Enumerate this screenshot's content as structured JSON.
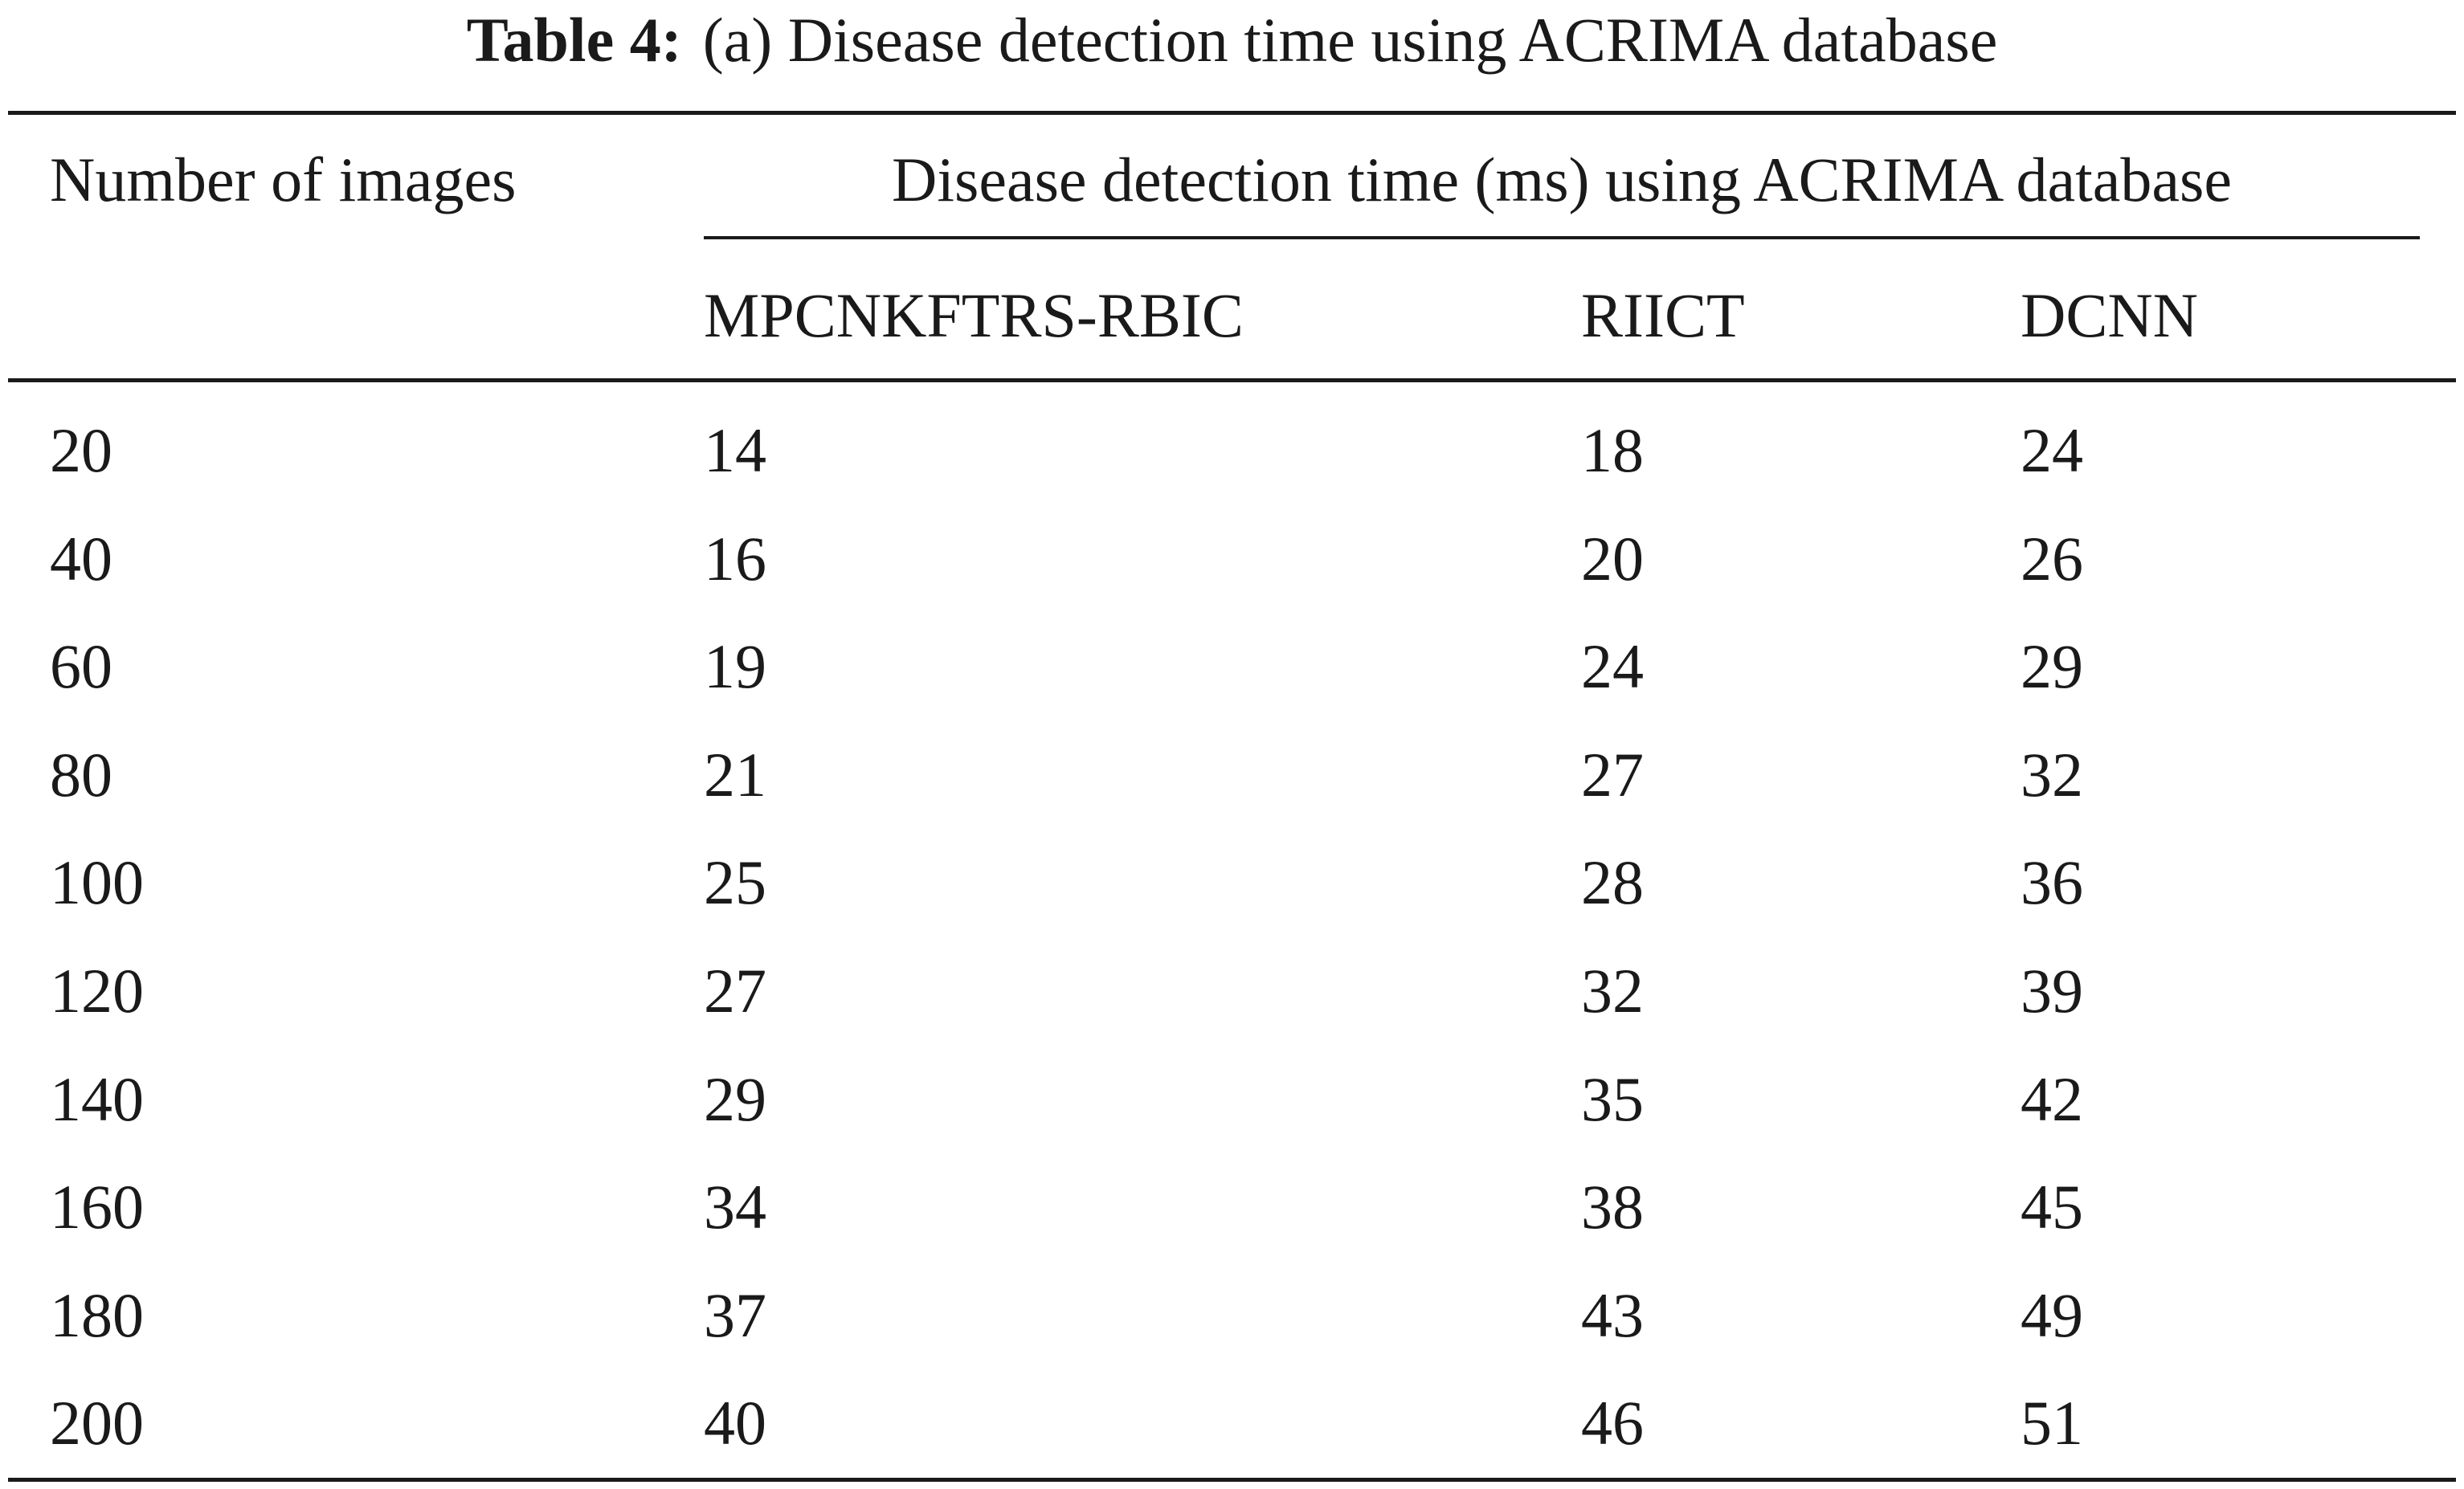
{
  "caption": {
    "label": "Table 4:",
    "text": "(a) Disease detection time using ACRIMA database"
  },
  "table": {
    "row_header": "Number of images",
    "group_header": "Disease detection time (ms) using ACRIMA database",
    "columns": [
      "MPCNKFTRS-RBIC",
      "RIICT",
      "DCNN"
    ],
    "rows": [
      [
        "20",
        "14",
        "18",
        "24"
      ],
      [
        "40",
        "16",
        "20",
        "26"
      ],
      [
        "60",
        "19",
        "24",
        "29"
      ],
      [
        "80",
        "21",
        "27",
        "32"
      ],
      [
        "100",
        "25",
        "28",
        "36"
      ],
      [
        "120",
        "27",
        "32",
        "39"
      ],
      [
        "140",
        "29",
        "35",
        "42"
      ],
      [
        "160",
        "34",
        "38",
        "45"
      ],
      [
        "180",
        "37",
        "43",
        "49"
      ],
      [
        "200",
        "40",
        "46",
        "51"
      ]
    ]
  }
}
